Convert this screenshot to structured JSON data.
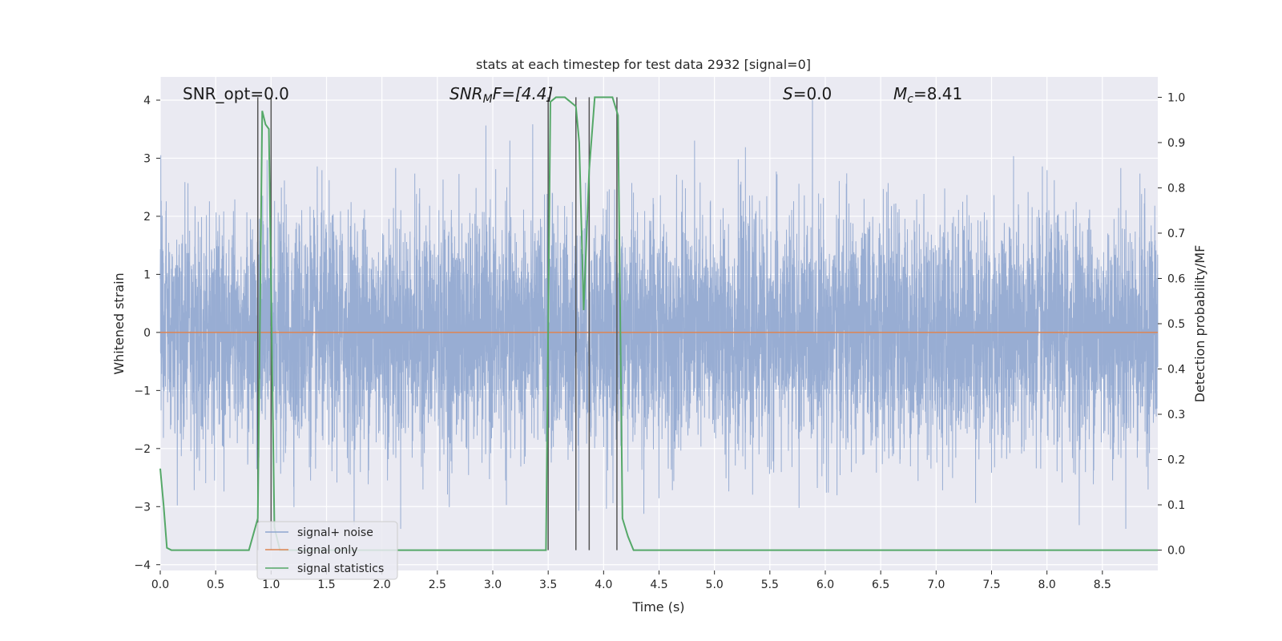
{
  "chart_data": {
    "type": "line",
    "title": "stats at each timestep for test data 2932 [signal=0]",
    "xlabel": "Time (s)",
    "ylabel": "Whitened strain",
    "ylabel_right": "Detection probability/MF",
    "xlim": [
      0,
      9.0
    ],
    "ylim": [
      -4.1,
      4.4
    ],
    "ylim_right": [
      -0.045,
      1.045
    ],
    "x_ticks": [
      0.0,
      0.5,
      1.0,
      1.5,
      2.0,
      2.5,
      3.0,
      3.5,
      4.0,
      4.5,
      5.0,
      5.5,
      6.0,
      6.5,
      7.0,
      7.5,
      8.0,
      8.5
    ],
    "x_tick_labels": [
      "0.0",
      "0.5",
      "1.0",
      "1.5",
      "2.0",
      "2.5",
      "3.0",
      "3.5",
      "4.0",
      "4.5",
      "5.0",
      "5.5",
      "6.0",
      "6.5",
      "7.0",
      "7.5",
      "8.0",
      "8.5"
    ],
    "y_ticks": [
      4,
      3,
      2,
      1,
      0,
      -1,
      -2,
      -3,
      -4
    ],
    "y_tick_labels": [
      "4",
      "3",
      "2",
      "1",
      "0",
      "−1",
      "−2",
      "−3",
      "−4"
    ],
    "y_right_ticks": [
      1.0,
      0.9,
      0.8,
      0.7,
      0.6,
      0.5,
      0.4,
      0.3,
      0.2,
      0.1,
      0.0
    ],
    "y_right_tick_labels": [
      "1.0",
      "0.9",
      "0.8",
      "0.7",
      "0.6",
      "0.5",
      "0.4",
      "0.3",
      "0.2",
      "0.1",
      "0.0"
    ],
    "grid": true,
    "legend_position": "lower-left",
    "annotations": {
      "snr_opt": "SNR_opt=0.0",
      "snr_mf_main": "SNR",
      "snr_mf_sub": "M",
      "snr_mf_tail": "F=[4.4]",
      "s_italic": "S",
      "s_tail": "=0.0",
      "mc_main": "M",
      "mc_sub": "c",
      "mc_tail": "=8.41"
    },
    "series": [
      {
        "name": "signal+ noise",
        "color": "#8fa6cf",
        "description_values": "dense whitened-noise strain, roughly within ±2 with peaks up to about ±4",
        "amplitude_std": 1.0
      },
      {
        "name": "signal only",
        "color": "#dd8452",
        "x": [
          0,
          9.0
        ],
        "y": [
          0,
          0
        ]
      },
      {
        "name": "signal statistics",
        "color": "#55a868",
        "axis": "right",
        "x": [
          0.0,
          0.03,
          0.06,
          0.1,
          0.15,
          0.8,
          0.88,
          0.92,
          0.95,
          0.98,
          1.03,
          1.08,
          1.2,
          3.48,
          3.52,
          3.57,
          3.65,
          3.7,
          3.75,
          3.78,
          3.82,
          3.87,
          3.92,
          3.97,
          4.02,
          4.08,
          4.13,
          4.17,
          4.22,
          4.27,
          4.35,
          9.0
        ],
        "y": [
          0.18,
          0.1,
          0.005,
          0.0,
          0.0,
          0.0,
          0.07,
          0.97,
          0.94,
          0.93,
          0.05,
          0.0,
          0.0,
          0.0,
          0.99,
          1.0,
          1.0,
          0.99,
          0.98,
          0.9,
          0.53,
          0.84,
          1.0,
          1.0,
          1.0,
          1.0,
          0.96,
          0.07,
          0.03,
          0.0,
          0.0,
          0.0
        ]
      }
    ],
    "vertical_lines_x": [
      0.88,
      1.0,
      3.5,
      3.75,
      3.87,
      4.12
    ]
  }
}
